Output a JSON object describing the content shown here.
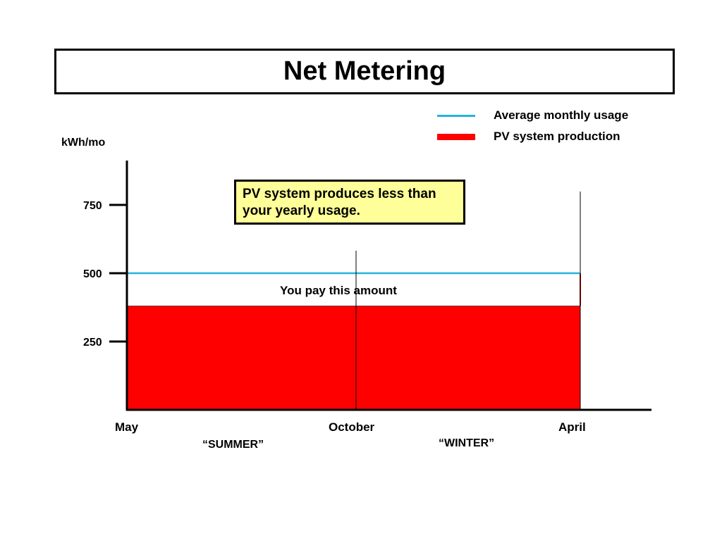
{
  "chart_data": {
    "type": "area",
    "title": "Net Metering",
    "ylabel": "kWh/mo",
    "xlabel": "",
    "ylim": [
      0,
      900
    ],
    "yticks": [
      250,
      500,
      750
    ],
    "ytick_labels": [
      "250",
      "500",
      "750"
    ],
    "x_labels": [
      "May",
      "October",
      "April"
    ],
    "season_labels": [
      "“SUMMER”",
      "“WINTER”"
    ],
    "series": [
      {
        "name": "Average monthly usage",
        "type": "line",
        "value": 500,
        "color": "#22b5dc"
      },
      {
        "name": "PV system production",
        "type": "bar",
        "value": 380,
        "color": "#ff0000"
      }
    ],
    "legend_position": "top-right",
    "callout": "PV system produces less than your yearly usage.",
    "annotation": "You pay this amount",
    "grid": false
  }
}
